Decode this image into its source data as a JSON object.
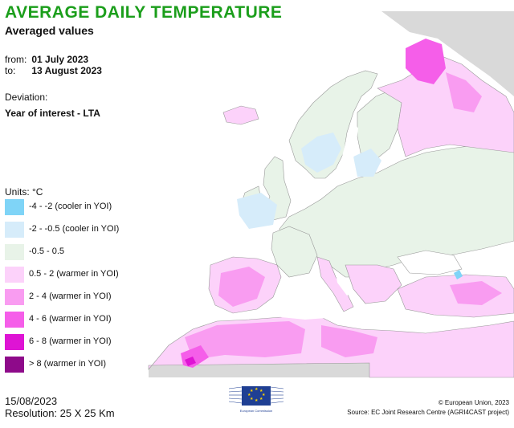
{
  "header": {
    "title": "AVERAGE DAILY TEMPERATURE",
    "subtitle": "Averaged values",
    "from_label": "from:",
    "from_date": "01 July 2023",
    "to_label": "to:",
    "to_date": "13 August 2023",
    "deviation_label": "Deviation:",
    "deviation_value": "Year of interest - LTA"
  },
  "legend": {
    "units": "Units: °C",
    "items": [
      {
        "label": "-4 - -2 (cooler in YOI)",
        "color": "#7fd4f7"
      },
      {
        "label": "-2 - -0.5 (cooler in YOI)",
        "color": "#d6ecfa"
      },
      {
        "label": "-0.5 - 0.5",
        "color": "#e8f3e8"
      },
      {
        "label": "0.5 - 2 (warmer in YOI)",
        "color": "#fcd2fa"
      },
      {
        "label": "2 - 4 (warmer in YOI)",
        "color": "#f99cf1"
      },
      {
        "label": "4 - 6 (warmer in YOI)",
        "color": "#f55ee9"
      },
      {
        "label": "6 - 8 (warmer in YOI)",
        "color": "#de14d4"
      },
      {
        "label": "> 8 (warmer in YOI)",
        "color": "#8e0a8a"
      }
    ]
  },
  "footer": {
    "date": "15/08/2023",
    "resolution": "Resolution: 25 X 25 Km",
    "copyright": "© European Union, 2023",
    "source": "Source: EC Joint Research Centre (AGRI4CAST project)",
    "logo_text": "European Commission"
  },
  "map": {
    "colors": {
      "sea": "#ffffff",
      "no_data": "#d9d9d9",
      "border": "#9a9a9a"
    }
  }
}
